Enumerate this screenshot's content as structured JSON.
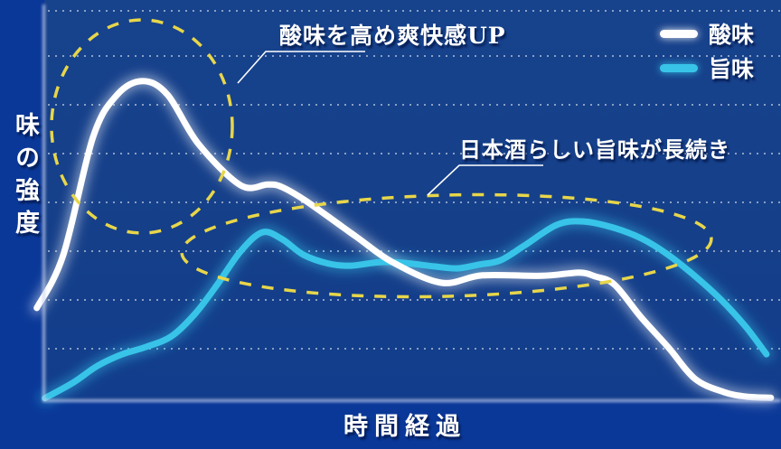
{
  "chart_data": {
    "type": "line",
    "title": "",
    "xlabel": "時間経過",
    "ylabel": "味の強度",
    "xlim": [
      0,
      100
    ],
    "ylim": [
      0,
      100
    ],
    "grid": "horizontal dotted lines, 8 rows",
    "legend_position": "top-right",
    "series": [
      {
        "name": "酸味",
        "color": "#ffffff",
        "points": [
          [
            -0.9,
            23.5
          ],
          [
            2.7,
            37.0
          ],
          [
            6.8,
            67.5
          ],
          [
            10.1,
            78.4
          ],
          [
            13.6,
            81.9
          ],
          [
            17.0,
            78.4
          ],
          [
            21.2,
            65.8
          ],
          [
            27.0,
            55.1
          ],
          [
            30.7,
            55.3
          ],
          [
            32.6,
            54.7
          ],
          [
            36.0,
            51.0
          ],
          [
            42.8,
            41.9
          ],
          [
            47.8,
            35.3
          ],
          [
            54.5,
            30.0
          ],
          [
            60.1,
            31.9
          ],
          [
            68.2,
            31.8
          ],
          [
            73.3,
            32.6
          ],
          [
            75.6,
            31.6
          ],
          [
            78.2,
            29.5
          ],
          [
            81.8,
            21.2
          ],
          [
            85.6,
            13.3
          ],
          [
            89.2,
            5.3
          ],
          [
            93.1,
            1.9
          ],
          [
            96.2,
            0.7
          ],
          [
            99.6,
            0.4
          ]
        ]
      },
      {
        "name": "旨味",
        "color": "#38c4e8",
        "points": [
          [
            0.2,
            0.3
          ],
          [
            4.0,
            4.2
          ],
          [
            7.4,
            8.6
          ],
          [
            10.8,
            11.6
          ],
          [
            14.1,
            13.5
          ],
          [
            17.6,
            16.3
          ],
          [
            20.8,
            22.1
          ],
          [
            23.8,
            29.5
          ],
          [
            27.0,
            38.1
          ],
          [
            30.0,
            43.0
          ],
          [
            32.7,
            41.2
          ],
          [
            35.6,
            37.2
          ],
          [
            39.1,
            34.9
          ],
          [
            42.1,
            34.4
          ],
          [
            46.0,
            35.3
          ],
          [
            49.5,
            35.1
          ],
          [
            53.5,
            34.2
          ],
          [
            56.7,
            33.7
          ],
          [
            59.7,
            34.7
          ],
          [
            62.6,
            35.8
          ],
          [
            65.8,
            39.5
          ],
          [
            70.3,
            44.9
          ],
          [
            73.9,
            45.8
          ],
          [
            78.0,
            44.2
          ],
          [
            81.9,
            41.4
          ],
          [
            85.4,
            37.4
          ],
          [
            89.1,
            31.9
          ],
          [
            92.8,
            25.6
          ],
          [
            96.2,
            18.6
          ],
          [
            99.0,
            11.6
          ]
        ]
      }
    ],
    "annotations": [
      {
        "text": "酸味を高め爽快感UP",
        "highlight": "yellow dashed ellipse around early 酸味 peak"
      },
      {
        "text": "日本酒らしい旨味が長続き",
        "highlight": "yellow dashed ellipse around long 旨味 plateau"
      }
    ]
  },
  "colors": {
    "background": "#0a3898",
    "plot_background": "#16418b",
    "grid_dots": "#ffffff",
    "axis": "#c8d2ee",
    "highlight_dash": "#e7d64a"
  }
}
